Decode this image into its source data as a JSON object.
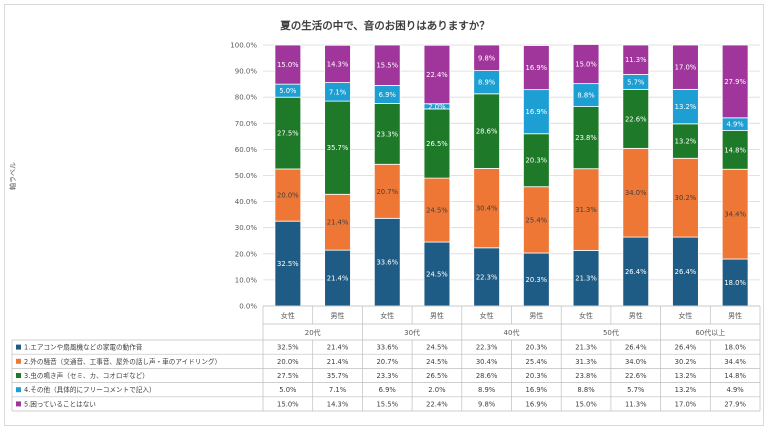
{
  "chart_data": {
    "type": "bar",
    "stacked": "percent",
    "title": "夏の生活の中で、音のお困りはありますか？",
    "ylabel": "軸ラベル",
    "ylim": [
      0,
      100
    ],
    "yticks": [
      "0.0%",
      "10.0%",
      "20.0%",
      "30.0%",
      "40.0%",
      "50.0%",
      "60.0%",
      "70.0%",
      "80.0%",
      "90.0%",
      "100.0%"
    ],
    "groups": [
      {
        "label": "20代",
        "categories": [
          "女性",
          "男性"
        ]
      },
      {
        "label": "30代",
        "categories": [
          "女性",
          "男性"
        ]
      },
      {
        "label": "40代",
        "categories": [
          "女性",
          "男性"
        ]
      },
      {
        "label": "50代",
        "categories": [
          "女性",
          "男性"
        ]
      },
      {
        "label": "60代以上",
        "categories": [
          "女性",
          "男性"
        ]
      }
    ],
    "series": [
      {
        "name": "1.エアコンや扇風機などの家電の動作音",
        "color": "#1f5c85",
        "values": [
          32.5,
          21.4,
          33.6,
          24.5,
          22.3,
          20.3,
          21.3,
          26.4,
          26.4,
          18.0
        ],
        "labels": [
          "32.5%",
          "21.4%",
          "33.6%",
          "24.5%",
          "22.3%",
          "20.3%",
          "21.3%",
          "26.4%",
          "26.4%",
          "18.0%"
        ]
      },
      {
        "name": "2.外の騒音（交通音、工事音、屋外の話し声・車のアイドリング）",
        "color": "#ee7735",
        "values": [
          20.0,
          21.4,
          20.7,
          24.5,
          30.4,
          25.4,
          31.3,
          34.0,
          30.2,
          34.4
        ],
        "labels": [
          "20.0%",
          "21.4%",
          "20.7%",
          "24.5%",
          "30.4%",
          "25.4%",
          "31.3%",
          "34.0%",
          "30.2%",
          "34.4%"
        ]
      },
      {
        "name": "3.虫の鳴き声（セミ、カ、コオロギなど）",
        "color": "#1e7a28",
        "values": [
          27.5,
          35.7,
          23.3,
          26.5,
          28.6,
          20.3,
          23.8,
          22.6,
          13.2,
          14.8
        ],
        "labels": [
          "27.5%",
          "35.7%",
          "23.3%",
          "26.5%",
          "28.6%",
          "20.3%",
          "23.8%",
          "22.6%",
          "13.2%",
          "14.8%"
        ]
      },
      {
        "name": "4.その他（具体的にフリーコメントで記入）",
        "color": "#1e9fd3",
        "values": [
          5.0,
          7.1,
          6.9,
          2.0,
          8.9,
          16.9,
          8.8,
          5.7,
          13.2,
          4.9
        ],
        "labels": [
          "5.0%",
          "7.1%",
          "6.9%",
          "2.0%",
          "8.9%",
          "16.9%",
          "8.8%",
          "5.7%",
          "13.2%",
          "4.9%"
        ]
      },
      {
        "name": "5.困っていることはない",
        "color": "#a0369c",
        "values": [
          15.0,
          14.3,
          15.5,
          22.4,
          9.8,
          16.9,
          15.0,
          11.3,
          17.0,
          27.9
        ],
        "labels": [
          "15.0%",
          "14.3%",
          "15.5%",
          "22.4%",
          "9.8%",
          "16.9%",
          "15.0%",
          "11.3%",
          "17.0%",
          "27.9%"
        ]
      }
    ]
  }
}
